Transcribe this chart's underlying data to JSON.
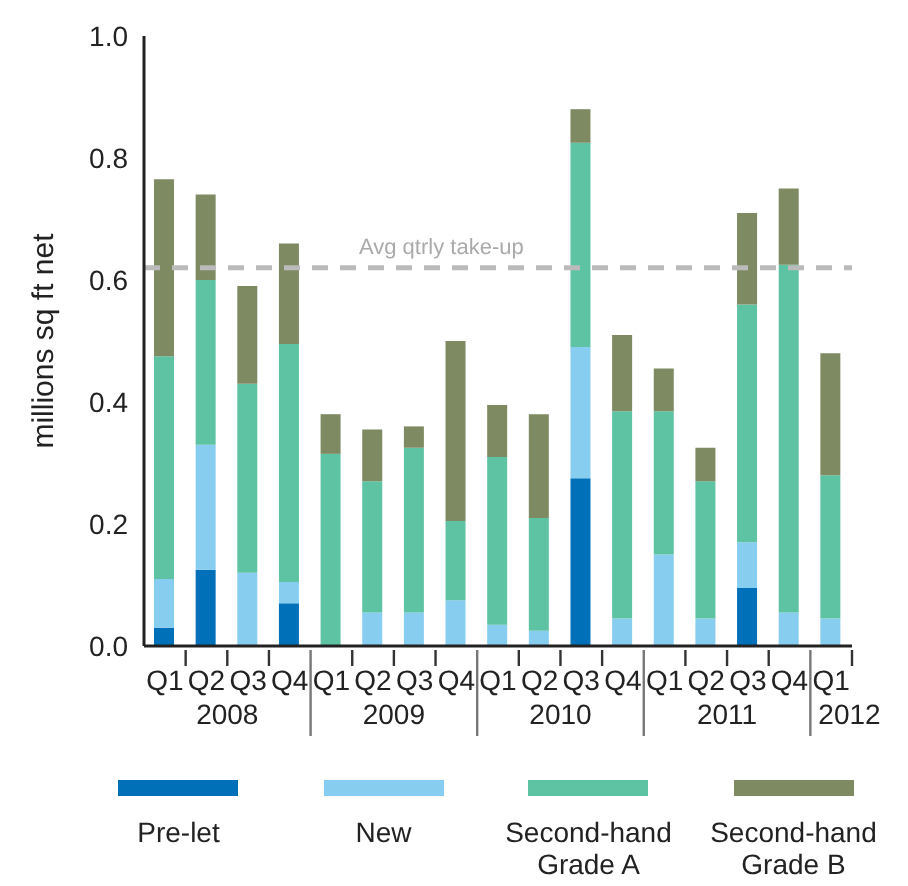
{
  "chart_data": {
    "type": "bar",
    "stacked": true,
    "ylabel": "millions sq ft net",
    "categories": [
      "Q1",
      "Q2",
      "Q3",
      "Q4",
      "Q1",
      "Q2",
      "Q3",
      "Q4",
      "Q1",
      "Q2",
      "Q3",
      "Q4",
      "Q1",
      "Q2",
      "Q3",
      "Q4",
      "Q1"
    ],
    "annotations": [
      "2008",
      "2009",
      "2010",
      "2011",
      "2012"
    ],
    "series": [
      {
        "name": "Pre-let",
        "color": "#0070b8",
        "values": [
          0.03,
          0.125,
          0,
          0.07,
          0,
          0,
          0,
          0,
          0,
          0,
          0.275,
          0,
          0,
          0,
          0.095,
          0,
          0
        ]
      },
      {
        "name": "New",
        "color": "#87cdef",
        "values": [
          0.08,
          0.205,
          0.12,
          0.035,
          0,
          0.055,
          0.055,
          0.075,
          0.035,
          0.025,
          0.215,
          0.045,
          0.15,
          0.045,
          0.075,
          0.055,
          0.045
        ]
      },
      {
        "name": "Second-hand Grade A",
        "color": "#5ec3a3",
        "values": [
          0.365,
          0.27,
          0.31,
          0.39,
          0.315,
          0.215,
          0.27,
          0.13,
          0.275,
          0.185,
          0.335,
          0.34,
          0.235,
          0.225,
          0.39,
          0.57,
          0.235
        ]
      },
      {
        "name": "Second-hand Grade B",
        "color": "#7e8a62",
        "values": [
          0.29,
          0.14,
          0.16,
          0.165,
          0.065,
          0.085,
          0.035,
          0.295,
          0.085,
          0.17,
          0.055,
          0.125,
          0.07,
          0.055,
          0.15,
          0.125,
          0.2
        ]
      }
    ],
    "ylim": [
      0,
      1
    ],
    "yticks": [
      {
        "value": 0,
        "label": "0.0"
      },
      0.2,
      0.4,
      0.6,
      0.8,
      {
        "value": 1,
        "label": "1.0"
      }
    ],
    "ref_lines": [
      {
        "axis": "y",
        "value": 0.62,
        "label": "Avg qtrly take-up",
        "color": "#bbbbbb",
        "line_style": "dashed"
      }
    ],
    "grid": false,
    "legend": "bottom"
  }
}
